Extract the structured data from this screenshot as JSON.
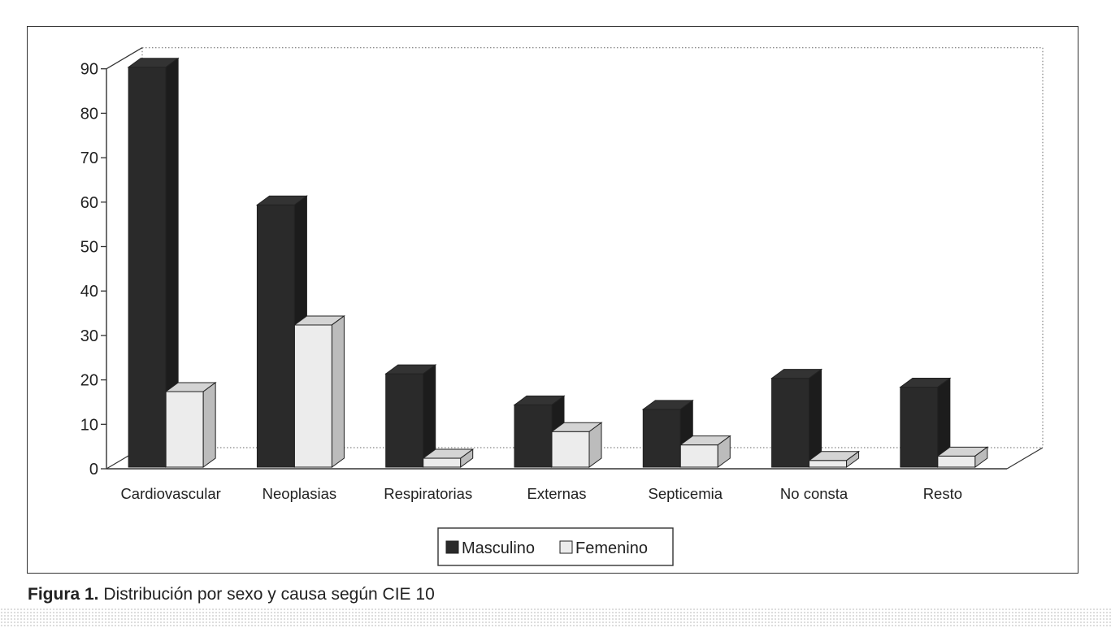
{
  "chart_data": {
    "type": "bar",
    "categories": [
      "Cardiovascular",
      "Neoplasias",
      "Respiratorias",
      "Externas",
      "Septicemia",
      "No consta",
      "Resto"
    ],
    "series": [
      {
        "name": "Masculino",
        "values": [
          90,
          59,
          21,
          14,
          13,
          20,
          18
        ]
      },
      {
        "name": "Femenino",
        "values": [
          17,
          32,
          2,
          8,
          5,
          1.5,
          2.5
        ]
      }
    ],
    "yticks": [
      "0",
      "10",
      "20",
      "30",
      "40",
      "50",
      "60",
      "70",
      "80",
      "90"
    ],
    "ylim": [
      0,
      90
    ],
    "grid": false,
    "legend": "bottom-center",
    "colors": {
      "Masculino": "#2a2a2a",
      "Femenino": "#ececec"
    }
  },
  "caption": {
    "label": "Figura 1.",
    "text": " Distribución por sexo y causa según CIE 10"
  }
}
